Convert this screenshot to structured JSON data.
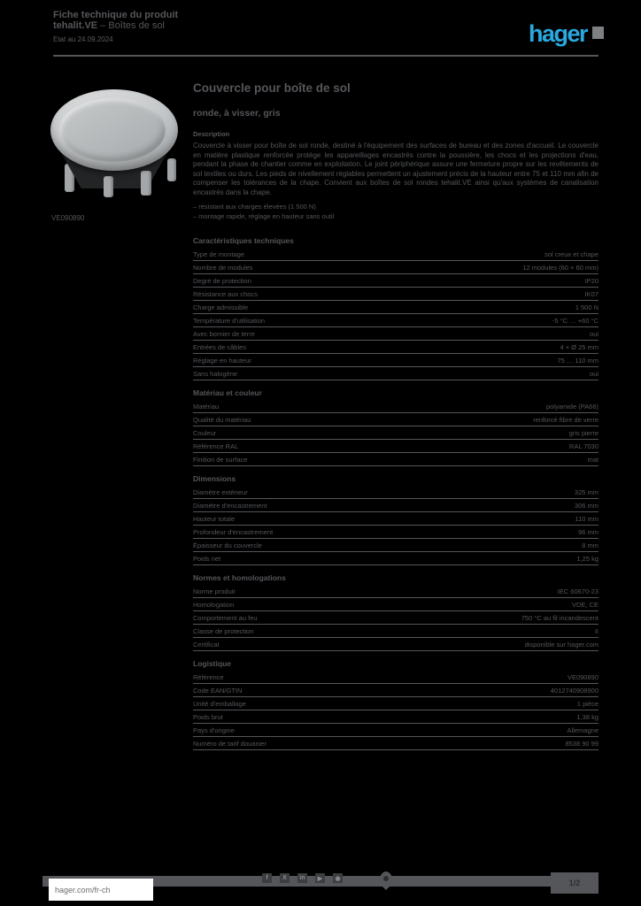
{
  "colors": {
    "background": "#000000",
    "text_gray": "#54565a",
    "logo_blue": "#29a9e0",
    "footer_bar": "#55565a",
    "footer_box": "#ffffff"
  },
  "header": {
    "line1": "Fiche technique du produit",
    "line2_bold": "tehalit.VE",
    "line2_rest": " – Boîtes de sol",
    "date": "Etat au 24.09.2024",
    "logo_text": "hager"
  },
  "product": {
    "image_alt": "round-floor-box-cover",
    "ref": "VE090890"
  },
  "main": {
    "title": "Couvercle pour boîte de sol",
    "subtitle": "ronde, à visser, gris",
    "desc_label": "Description",
    "description": "Couvercle à visser pour boîte de sol ronde, destiné à l'équipement des surfaces de bureau et des zones d'accueil. Le couvercle en matière plastique renforcée protège les appareillages encastrés contre la poussière, les chocs et les projections d'eau, pendant la phase de chantier comme en exploitation. Le joint périphérique assure une fermeture propre sur les revêtements de sol textiles ou durs. Les pieds de nivellement réglables permettent un ajustement précis de la hauteur entre 75 et 110 mm afin de compenser les tolérances de la chape. Convient aux boîtes de sol rondes tehalit.VE ainsi qu'aux systèmes de canalisation encastrés dans la chape.",
    "advantages": [
      "– résistant aux charges élevées (1 500 N)",
      "– montage rapide, réglage en hauteur sans outil"
    ],
    "spec_sections": [
      {
        "heading": "Caractéristiques techniques",
        "rows": [
          {
            "label": "Type de montage",
            "value": "sol creux et chape"
          },
          {
            "label": "Nombre de modules",
            "value": "12 modules (60 × 60 mm)"
          },
          {
            "label": "Degré de protection",
            "value": "IP20"
          },
          {
            "label": "Résistance aux chocs",
            "value": "IK07"
          },
          {
            "label": "Charge admissible",
            "value": "1 500 N"
          },
          {
            "label": "Température d'utilisation",
            "value": "-5 °C … +60 °C"
          },
          {
            "label": "Avec bornier de terre",
            "value": "oui"
          },
          {
            "label": "Entrées de câbles",
            "value": "4 × Ø 25 mm"
          },
          {
            "label": "Réglage en hauteur",
            "value": "75 … 110 mm"
          },
          {
            "label": "Sans halogène",
            "value": "oui"
          }
        ]
      },
      {
        "heading": "Matériau et couleur",
        "rows": [
          {
            "label": "Matériau",
            "value": "polyamide (PA66)"
          },
          {
            "label": "Qualité du matériau",
            "value": "renforcé fibre de verre"
          },
          {
            "label": "Couleur",
            "value": "gris pierre"
          },
          {
            "label": "Référence RAL",
            "value": "RAL 7030"
          },
          {
            "label": "Finition de surface",
            "value": "mat"
          }
        ]
      },
      {
        "heading": "Dimensions",
        "rows": [
          {
            "label": "Diamètre extérieur",
            "value": "325 mm"
          },
          {
            "label": "Diamètre d'encastrement",
            "value": "306 mm"
          },
          {
            "label": "Hauteur totale",
            "value": "110 mm"
          },
          {
            "label": "Profondeur d'encastrement",
            "value": "96 mm"
          },
          {
            "label": "Épaisseur du couvercle",
            "value": "8 mm"
          },
          {
            "label": "Poids net",
            "value": "1,25 kg"
          }
        ]
      },
      {
        "heading": "Normes et homologations",
        "rows": [
          {
            "label": "Norme produit",
            "value": "IEC 60670-23"
          },
          {
            "label": "Homologation",
            "value": "VDE, CE"
          },
          {
            "label": "Comportement au feu",
            "value": "750 °C au fil incandescent"
          },
          {
            "label": "Classe de protection",
            "value": "II"
          },
          {
            "label": "Certificat",
            "value": "disponible sur hager.com"
          }
        ]
      },
      {
        "heading": "Logistique",
        "rows": [
          {
            "label": "Référence",
            "value": "VE090890"
          },
          {
            "label": "Code EAN/GTIN",
            "value": "4012740908900"
          },
          {
            "label": "Unité d'emballage",
            "value": "1 pièce"
          },
          {
            "label": "Poids brut",
            "value": "1,38 kg"
          },
          {
            "label": "Pays d'origine",
            "value": "Allemagne"
          },
          {
            "label": "Numéro de tarif douanier",
            "value": "8538 90 99"
          }
        ]
      }
    ]
  },
  "footer": {
    "url": "hager.com/fr-ch",
    "page": "1/2",
    "icons": [
      {
        "name": "facebook-icon",
        "glyph": "f"
      },
      {
        "name": "twitter-icon",
        "glyph": "X"
      },
      {
        "name": "linkedin-icon",
        "glyph": "in"
      },
      {
        "name": "youtube-icon",
        "glyph": "▶"
      },
      {
        "name": "instagram-icon",
        "glyph": "◉"
      }
    ]
  }
}
